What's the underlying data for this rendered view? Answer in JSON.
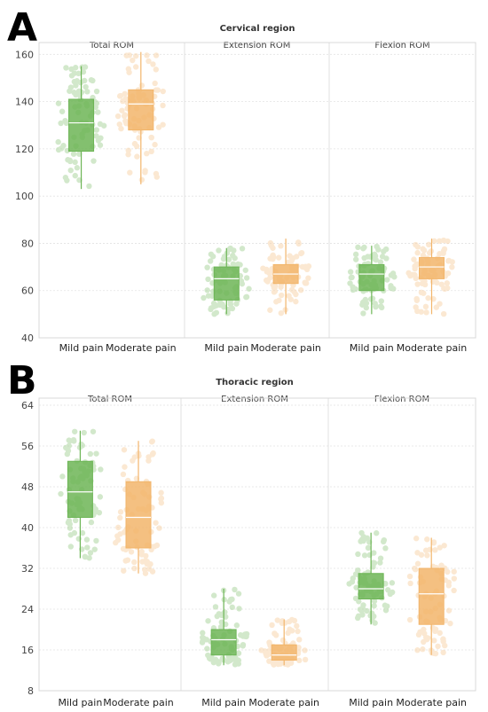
{
  "chart_data": [
    {
      "panel": "A",
      "type": "box",
      "title": "Cervical region",
      "ylim": [
        40,
        162
      ],
      "yticks": [
        40,
        60,
        80,
        100,
        120,
        140,
        160
      ],
      "grid": true,
      "categories": [
        "Mild pain",
        "Moderate pain"
      ],
      "facets": [
        {
          "title": "Total ROM",
          "boxes": [
            {
              "category": "Mild pain",
              "color": "#6db556",
              "min": 103,
              "q1": 119,
              "median": 131,
              "q3": 141,
              "max": 155
            },
            {
              "category": "Moderate pain",
              "color": "#f2b56b",
              "min": 105,
              "q1": 128,
              "median": 139,
              "q3": 145,
              "max": 161
            }
          ]
        },
        {
          "title": "Extension ROM",
          "boxes": [
            {
              "category": "Mild pain",
              "color": "#6db556",
              "min": 50,
              "q1": 56,
              "median": 65,
              "q3": 70,
              "max": 78
            },
            {
              "category": "Moderate pain",
              "color": "#f2b56b",
              "min": 50,
              "q1": 63,
              "median": 67,
              "q3": 71,
              "max": 82
            }
          ]
        },
        {
          "title": "Flexion ROM",
          "boxes": [
            {
              "category": "Mild pain",
              "color": "#6db556",
              "min": 50,
              "q1": 60,
              "median": 67,
              "q3": 71,
              "max": 79
            },
            {
              "category": "Moderate pain",
              "color": "#f2b56b",
              "min": 50,
              "q1": 65,
              "median": 70,
              "q3": 74,
              "max": 82
            }
          ]
        }
      ]
    },
    {
      "panel": "B",
      "type": "box",
      "title": "Thoracic region",
      "ylim": [
        8,
        64
      ],
      "yticks": [
        8,
        16,
        24,
        32,
        40,
        48,
        56,
        64
      ],
      "grid": true,
      "categories": [
        "Mild pain",
        "Moderate pain"
      ],
      "facets": [
        {
          "title": "Total ROM",
          "boxes": [
            {
              "category": "Mild pain",
              "color": "#6db556",
              "min": 34,
              "q1": 42,
              "median": 47,
              "q3": 53,
              "max": 59
            },
            {
              "category": "Moderate pain",
              "color": "#f2b56b",
              "min": 31,
              "q1": 36,
              "median": 42,
              "q3": 49,
              "max": 57
            }
          ]
        },
        {
          "title": "Extension ROM",
          "boxes": [
            {
              "category": "Mild pain",
              "color": "#6db556",
              "min": 13,
              "q1": 15,
              "median": 18,
              "q3": 20,
              "max": 28
            },
            {
              "category": "Moderate pain",
              "color": "#f2b56b",
              "min": 13,
              "q1": 14,
              "median": 15,
              "q3": 17,
              "max": 22
            }
          ]
        },
        {
          "title": "Flexion ROM",
          "boxes": [
            {
              "category": "Mild pain",
              "color": "#6db556",
              "min": 21,
              "q1": 26,
              "median": 28,
              "q3": 31,
              "max": 39
            },
            {
              "category": "Moderate pain",
              "color": "#f2b56b",
              "min": 15,
              "q1": 21,
              "median": 27,
              "q3": 32,
              "max": 38
            }
          ]
        }
      ]
    }
  ]
}
